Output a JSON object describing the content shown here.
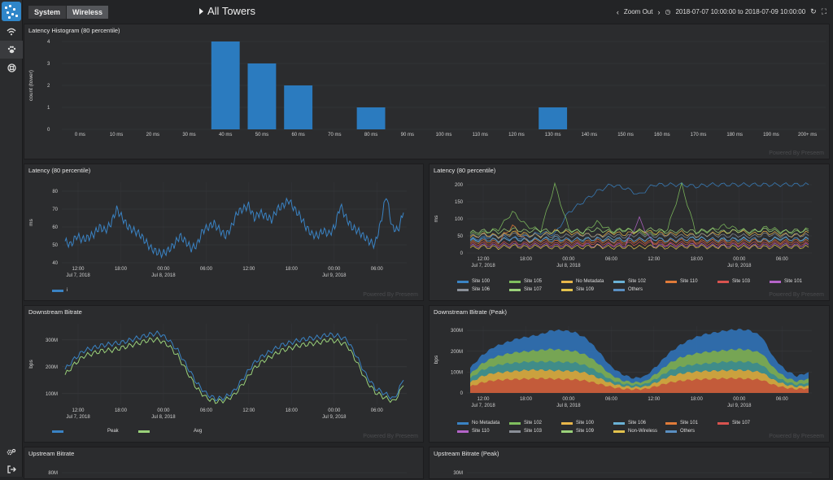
{
  "nav": {
    "tabs": [
      "System",
      "Wireless"
    ],
    "title": "All Towers",
    "zoom_out": "Zoom Out",
    "range": "2018-07-07 10:00:00 to 2018-07-09 10:00:00"
  },
  "credit": "Powered By Preseem",
  "panels": {
    "histogram": {
      "title": "Latency Histogram (80 percentile)"
    },
    "lat_avg": {
      "title": "Latency (80 percentile)",
      "legend": [
        "i"
      ]
    },
    "lat_sites": {
      "title": "Latency (80 percentile)",
      "legend": [
        "Site 100",
        "Site 105",
        "No Metadata",
        "Site 102",
        "Site 110",
        "Site 103",
        "Site 101",
        "Site 106",
        "Site 107",
        "Site 109",
        "Others"
      ]
    },
    "down": {
      "title": "Downstream Bitrate",
      "legend": [
        "Peak",
        "Avg"
      ]
    },
    "down_peak": {
      "title": "Downstream Bitrate (Peak)",
      "legend": [
        "No Metadata",
        "Site 102",
        "Site 100",
        "Site 106",
        "Site 101",
        "Site 107",
        "Site 110",
        "Site 103",
        "Site 109",
        "Non-Wireless",
        "Others"
      ]
    },
    "up": {
      "title": "Upstream Bitrate"
    },
    "up_peak": {
      "title": "Upstream Bitrate (Peak)"
    }
  },
  "colors": {
    "accent": "#2f86c9",
    "series_blue": "#3a83c4",
    "series_green": "#9ad17a"
  },
  "chart_data": [
    {
      "type": "bar",
      "title": "Latency Histogram (80 percentile)",
      "ylabel": "count (tower)",
      "ylim": [
        0,
        4
      ],
      "categories": [
        "0 ms",
        "10 ms",
        "20 ms",
        "30 ms",
        "40 ms",
        "50 ms",
        "60 ms",
        "70 ms",
        "80 ms",
        "90 ms",
        "100 ms",
        "110 ms",
        "120 ms",
        "130 ms",
        "140 ms",
        "150 ms",
        "160 ms",
        "170 ms",
        "180 ms",
        "190 ms",
        "200+ ms"
      ],
      "values": [
        0,
        0,
        0,
        0,
        4,
        3,
        2,
        0,
        1,
        0,
        0,
        0,
        0,
        1,
        0,
        0,
        0,
        0,
        0,
        0,
        0
      ],
      "yticks": [
        "0",
        "1",
        "2",
        "3",
        "4"
      ]
    },
    {
      "type": "line",
      "title": "Latency (80 percentile)",
      "ylabel": "ms",
      "ylim": [
        40,
        85
      ],
      "yticks": [
        "40",
        "50",
        "60",
        "70",
        "80"
      ],
      "xticks": [
        [
          "12:00",
          "Jul 7, 2018"
        ],
        [
          "18:00",
          ""
        ],
        [
          "00:00",
          "Jul 8, 2018"
        ],
        [
          "06:00",
          ""
        ],
        [
          "12:00",
          ""
        ],
        [
          "18:00",
          ""
        ],
        [
          "00:00",
          "Jul 9, 2018"
        ],
        [
          "06:00",
          ""
        ]
      ],
      "series": [
        {
          "name": "i",
          "values": [
            52,
            50,
            55,
            53,
            54,
            56,
            60,
            58,
            62,
            70,
            65,
            60,
            58,
            56,
            52,
            48,
            46,
            45,
            47,
            50,
            55,
            52,
            48,
            50,
            58,
            60,
            62,
            58,
            55,
            60,
            68,
            70,
            72,
            65,
            68,
            66,
            64,
            70,
            72,
            75,
            70,
            66,
            60,
            56,
            55,
            58,
            56,
            60,
            72,
            65,
            60,
            58,
            55,
            52,
            50,
            62,
            78,
            60,
            58,
            68
          ]
        }
      ]
    },
    {
      "type": "line",
      "title": "Latency (80 percentile)",
      "ylabel": "ms",
      "ylim": [
        0,
        200
      ],
      "yticks": [
        "0",
        "50",
        "100",
        "150",
        "200"
      ],
      "xticks": [
        [
          "12:00",
          "Jul 7, 2018"
        ],
        [
          "18:00",
          ""
        ],
        [
          "00:00",
          "Jul 8, 2018"
        ],
        [
          "06:00",
          ""
        ],
        [
          "12:00",
          ""
        ],
        [
          "18:00",
          ""
        ],
        [
          "00:00",
          "Jul 9, 2018"
        ],
        [
          "06:00",
          ""
        ]
      ],
      "series": [
        {
          "name": "Site 100",
          "values": [
            40,
            45,
            50,
            42,
            48,
            60,
            55,
            120,
            150,
            180,
            200,
            190,
            170,
            200,
            200,
            200,
            195,
            200,
            200,
            200,
            200,
            200,
            200,
            200,
            200
          ]
        },
        {
          "name": "Site 105",
          "values": [
            55,
            60,
            70,
            120,
            80,
            65,
            200,
            70,
            60,
            90,
            65,
            70,
            60,
            55,
            70,
            200,
            60,
            65,
            80,
            70,
            60,
            75,
            65,
            60,
            70
          ]
        },
        {
          "name": "No Metadata",
          "values": [
            45,
            55,
            50,
            60,
            55,
            50,
            65,
            60,
            55,
            50,
            60,
            55,
            65,
            60,
            55,
            60,
            50,
            55,
            60,
            65,
            55,
            60,
            55,
            50,
            60
          ]
        },
        {
          "name": "Site 102",
          "values": [
            35,
            40,
            38,
            42,
            36,
            40,
            45,
            38,
            42,
            40,
            44,
            38,
            40,
            42,
            38,
            40,
            44,
            40,
            38,
            42,
            40,
            38,
            44,
            40,
            42
          ]
        },
        {
          "name": "Site 110",
          "values": [
            30,
            35,
            32,
            80,
            34,
            36,
            33,
            35,
            32,
            36,
            34,
            33,
            35,
            32,
            34,
            36,
            33,
            35,
            34,
            32,
            36,
            34,
            33,
            35,
            34
          ]
        },
        {
          "name": "Site 103",
          "values": [
            25,
            28,
            26,
            30,
            27,
            29,
            26,
            28,
            27,
            30,
            26,
            28,
            27,
            29,
            26,
            28,
            30,
            27,
            29,
            26,
            28,
            27,
            29,
            28,
            27
          ]
        },
        {
          "name": "Site 101",
          "values": [
            20,
            22,
            21,
            24,
            22,
            23,
            21,
            22,
            24,
            21,
            23,
            22,
            100,
            21,
            23,
            22,
            24,
            21,
            22,
            23,
            21,
            22,
            24,
            22,
            23
          ]
        },
        {
          "name": "Site 106",
          "values": [
            50,
            52,
            48,
            55,
            50,
            53,
            49,
            51,
            54,
            50,
            52,
            48,
            55,
            50,
            53,
            49,
            51,
            54,
            50,
            52,
            48,
            55,
            50,
            53,
            51
          ]
        },
        {
          "name": "Site 107",
          "values": [
            60,
            65,
            62,
            70,
            64,
            68,
            61,
            66,
            63,
            69,
            62,
            67,
            64,
            70,
            61,
            66,
            63,
            68,
            62,
            65,
            64,
            69,
            61,
            66,
            64
          ]
        },
        {
          "name": "Site 109",
          "values": [
            15,
            18,
            16,
            20,
            17,
            19,
            16,
            18,
            17,
            20,
            16,
            18,
            17,
            19,
            16,
            18,
            20,
            17,
            19,
            16,
            18,
            17,
            19,
            18,
            17
          ]
        },
        {
          "name": "Others",
          "values": [
            38,
            40,
            36,
            42,
            39,
            41,
            37,
            40,
            38,
            42,
            36,
            40,
            39,
            41,
            37,
            40,
            42,
            39,
            41,
            38,
            40,
            37,
            41,
            40,
            39
          ]
        }
      ]
    },
    {
      "type": "line",
      "title": "Downstream Bitrate",
      "ylabel": "bps",
      "ylim": [
        60,
        360
      ],
      "yticks": [
        "100M",
        "200M",
        "300M"
      ],
      "xticks": [
        [
          "12:00",
          "Jul 7, 2018"
        ],
        [
          "18:00",
          ""
        ],
        [
          "00:00",
          "Jul 8, 2018"
        ],
        [
          "06:00",
          ""
        ],
        [
          "12:00",
          ""
        ],
        [
          "18:00",
          ""
        ],
        [
          "00:00",
          "Jul 9, 2018"
        ],
        [
          "06:00",
          ""
        ]
      ],
      "series": [
        {
          "name": "Peak",
          "values": [
            190,
            230,
            260,
            270,
            280,
            285,
            290,
            300,
            310,
            320,
            325,
            300,
            260,
            200,
            140,
            100,
            80,
            85,
            110,
            160,
            210,
            240,
            260,
            280,
            290,
            300,
            305,
            310,
            320,
            315,
            300,
            240,
            170,
            120,
            100,
            80,
            150
          ]
        },
        {
          "name": "Avg",
          "values": [
            170,
            210,
            240,
            250,
            260,
            262,
            270,
            280,
            290,
            300,
            300,
            280,
            240,
            180,
            120,
            85,
            70,
            75,
            95,
            140,
            190,
            220,
            240,
            260,
            270,
            280,
            285,
            290,
            300,
            295,
            280,
            220,
            150,
            105,
            85,
            70,
            130
          ]
        }
      ]
    },
    {
      "type": "area",
      "title": "Downstream Bitrate (Peak)",
      "ylabel": "bps",
      "ylim": [
        0,
        320
      ],
      "yticks": [
        "0",
        "100M",
        "200M",
        "300M"
      ],
      "xticks": [
        [
          "12:00",
          "Jul 7, 2018"
        ],
        [
          "18:00",
          ""
        ],
        [
          "00:00",
          "Jul 8, 2018"
        ],
        [
          "06:00",
          ""
        ],
        [
          "12:00",
          ""
        ],
        [
          "18:00",
          ""
        ],
        [
          "00:00",
          "Jul 9, 2018"
        ],
        [
          "06:00",
          ""
        ]
      ],
      "series": [
        {
          "name": "Others",
          "values": [
            120,
            180,
            220,
            240,
            260,
            270,
            280,
            300,
            300,
            290,
            260,
            200,
            130,
            90,
            70,
            80,
            130,
            190,
            230,
            260,
            280,
            290,
            300,
            305,
            300,
            270,
            170,
            110,
            80,
            100
          ]
        },
        {
          "name": "Site 100",
          "values": [
            90,
            140,
            170,
            185,
            195,
            200,
            205,
            210,
            205,
            200,
            180,
            140,
            90,
            60,
            50,
            55,
            95,
            140,
            170,
            185,
            195,
            200,
            205,
            210,
            205,
            190,
            120,
            75,
            55,
            70
          ]
        },
        {
          "name": "Site 106",
          "values": [
            70,
            110,
            130,
            140,
            145,
            150,
            150,
            150,
            148,
            145,
            130,
            100,
            65,
            45,
            38,
            42,
            70,
            105,
            125,
            135,
            140,
            145,
            150,
            150,
            148,
            135,
            85,
            55,
            40,
            50
          ]
        },
        {
          "name": "No Metadata",
          "values": [
            50,
            80,
            95,
            100,
            105,
            110,
            110,
            108,
            106,
            104,
            95,
            72,
            48,
            33,
            28,
            30,
            52,
            78,
            92,
            100,
            104,
            106,
            108,
            110,
            106,
            98,
            62,
            40,
            30,
            36
          ]
        },
        {
          "name": "Site 107",
          "values": [
            30,
            50,
            60,
            64,
            66,
            68,
            70,
            68,
            66,
            64,
            58,
            44,
            30,
            20,
            17,
            19,
            33,
            49,
            58,
            63,
            66,
            68,
            70,
            70,
            67,
            62,
            39,
            25,
            19,
            23
          ]
        }
      ]
    },
    {
      "type": "line",
      "title": "Upstream Bitrate",
      "ylabel": "",
      "yticks": [
        "80M"
      ],
      "series": []
    },
    {
      "type": "area",
      "title": "Upstream Bitrate (Peak)",
      "ylabel": "",
      "yticks": [
        "30M"
      ],
      "series": []
    }
  ]
}
